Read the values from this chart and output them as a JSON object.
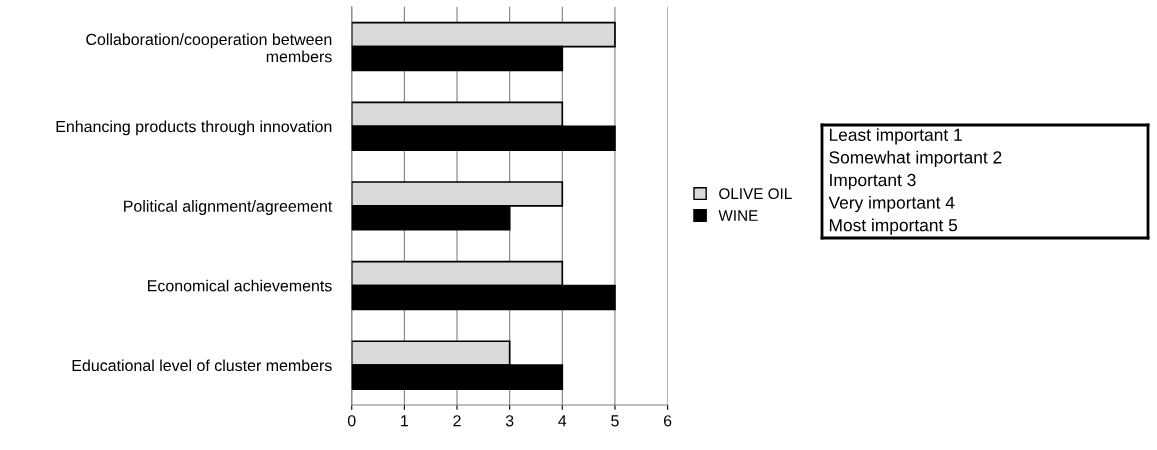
{
  "chart_data": {
    "type": "bar",
    "orientation": "horizontal",
    "categories": [
      "Collaboration/cooperation between members",
      "Enhancing products through innovation",
      "Political alignment/agreement",
      "Economical achievements",
      "Educational level of cluster members"
    ],
    "series": [
      {
        "name": "OLIVE OIL",
        "color": "#d9d9d9",
        "values": [
          5,
          4,
          4,
          4,
          3
        ]
      },
      {
        "name": "WINE",
        "color": "#000000",
        "values": [
          4,
          5,
          3,
          5,
          4
        ]
      }
    ],
    "xlim": [
      0,
      6
    ],
    "xticks": [
      0,
      1,
      2,
      3,
      4,
      5,
      6
    ],
    "grid": "x",
    "legend": "right",
    "annotations": [
      "Least important 1",
      "Somewhat important 2",
      "Important 3",
      "Very important 4",
      "Most important 5"
    ]
  }
}
